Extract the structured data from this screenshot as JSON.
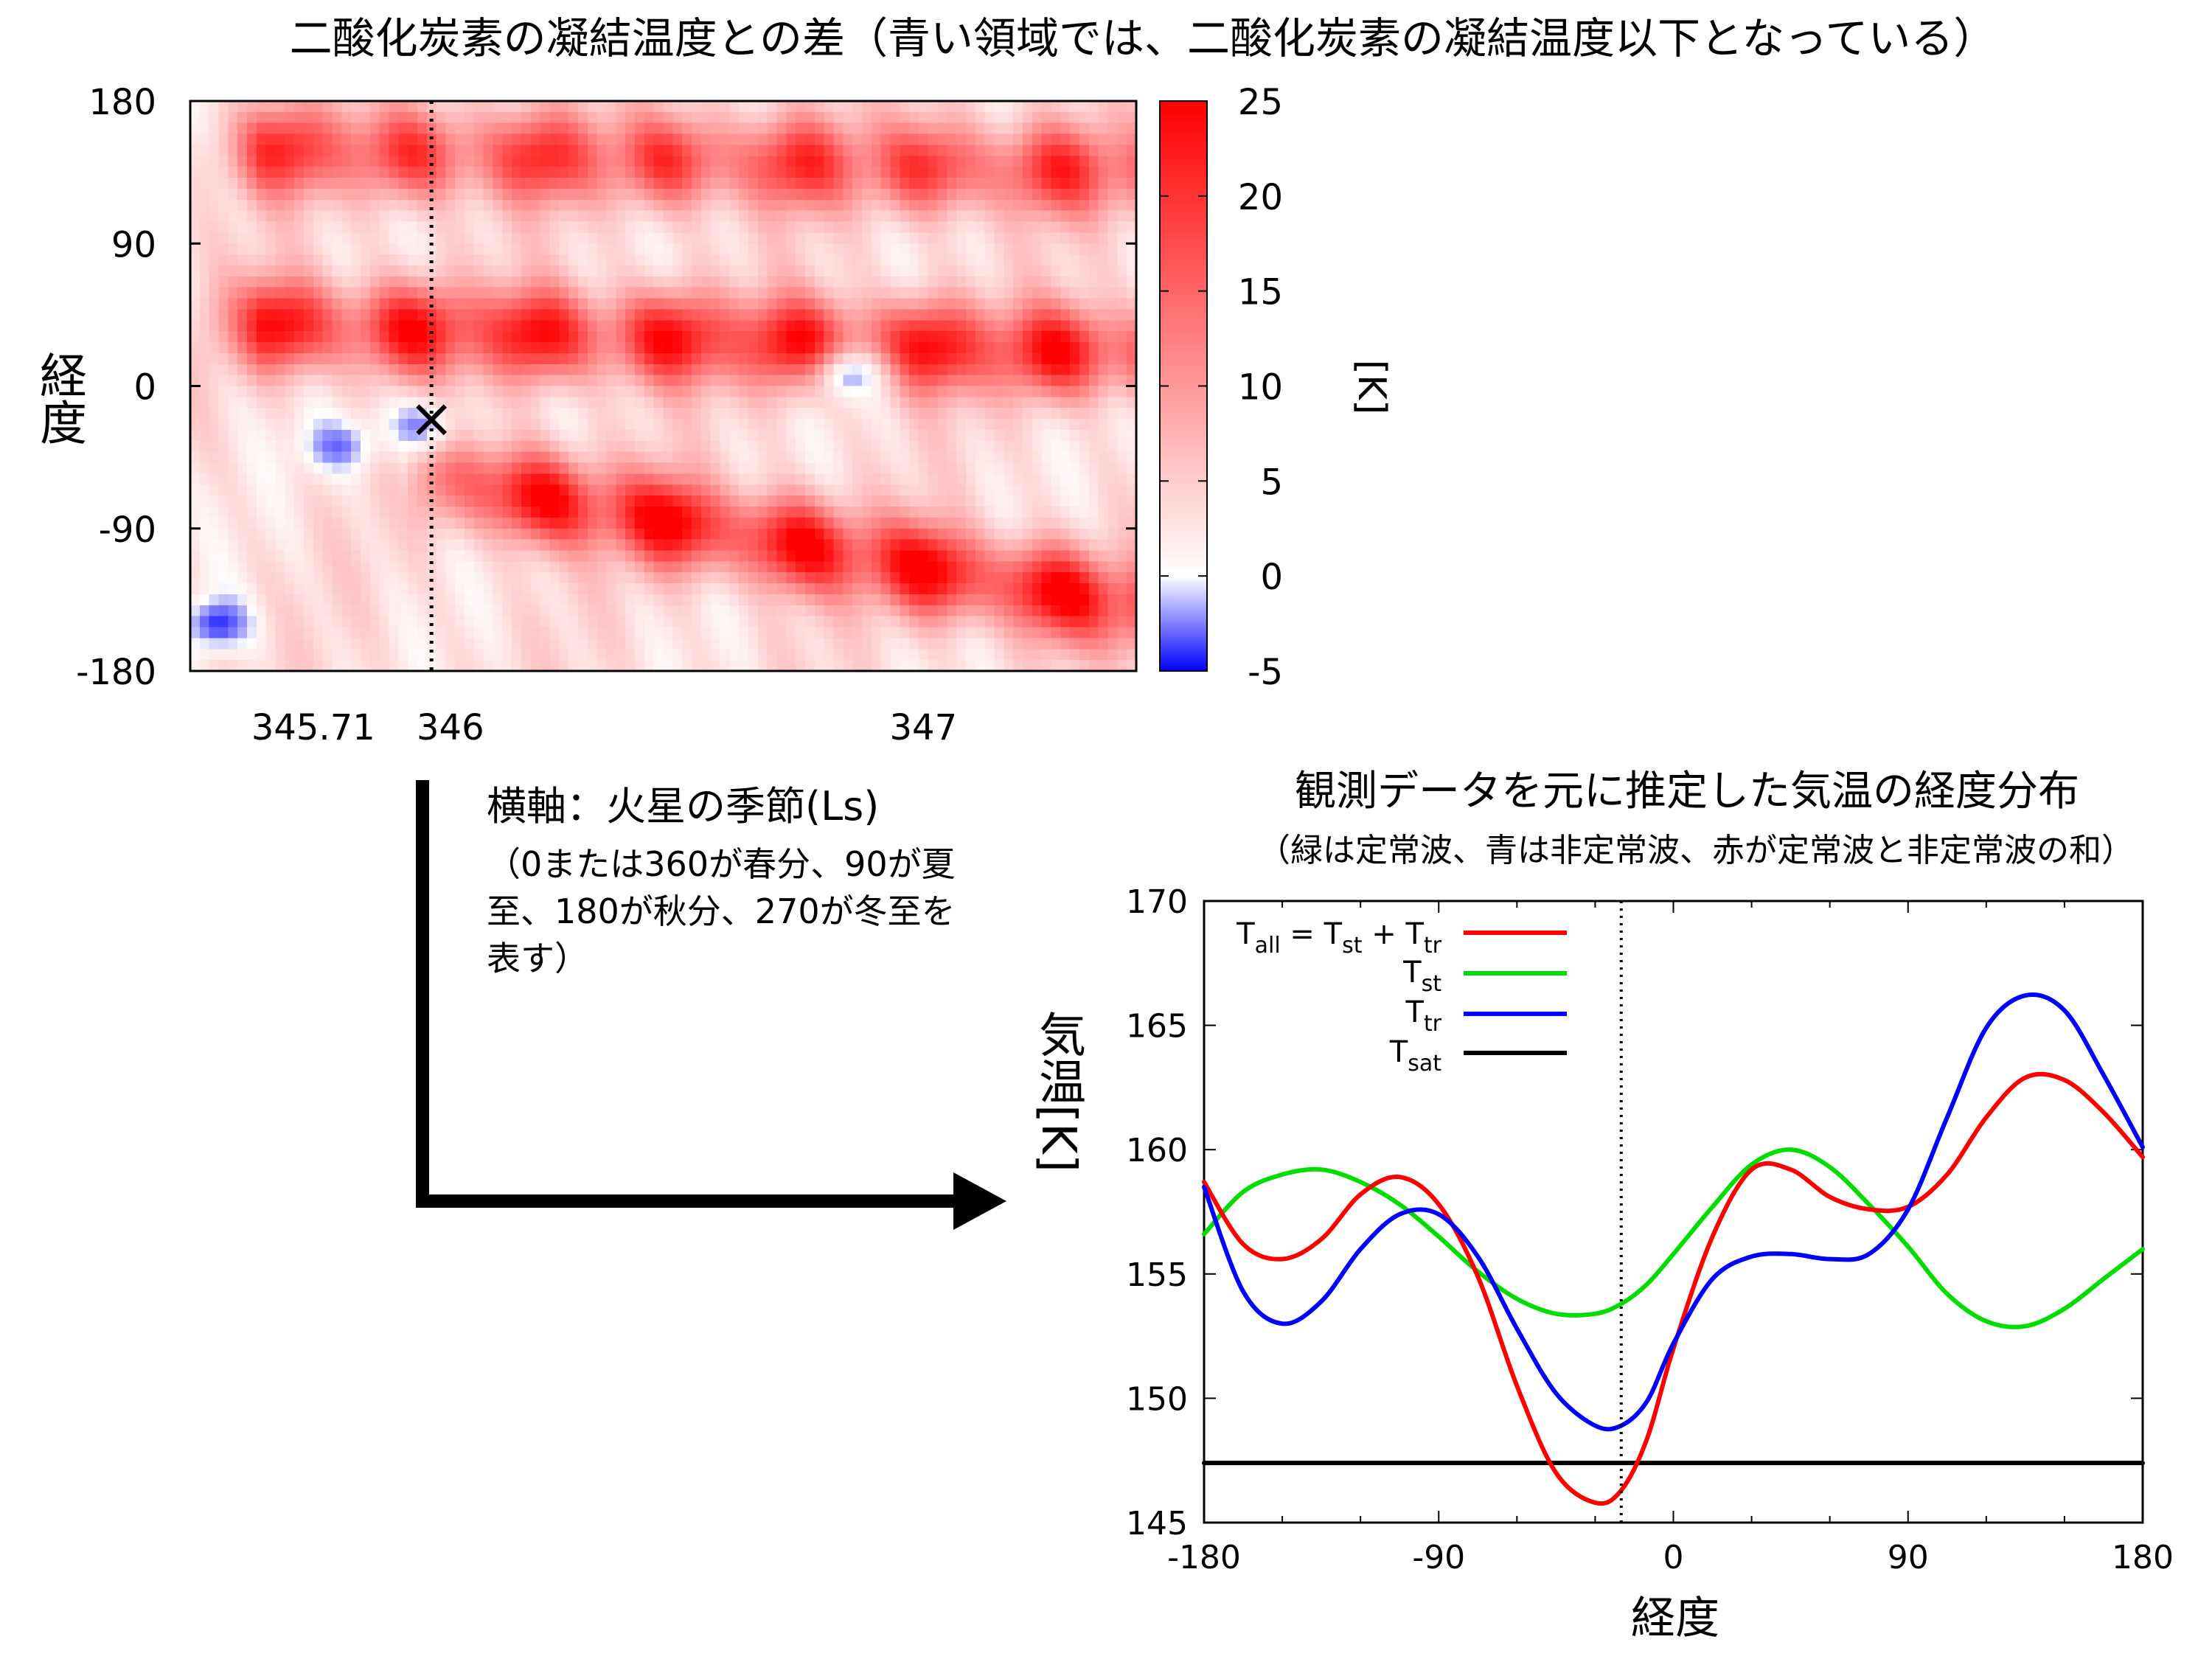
{
  "chart_data": [
    {
      "type": "heatmap",
      "title": "二酸化炭素の凝結温度との差（青い領域では、二酸化炭素の凝結温度以下となっている）",
      "ylabel": "経度",
      "xlabel": "",
      "colorbar_label": "[K]",
      "xlim": [
        345.45,
        347.45
      ],
      "ylim": [
        -180,
        180
      ],
      "yticks": [
        -180,
        -90,
        0,
        90,
        180
      ],
      "xtick_labels": [
        {
          "value": 345.71,
          "label": "345.71"
        },
        {
          "value": 346,
          "label": "346"
        },
        {
          "value": 347,
          "label": "347"
        }
      ],
      "colorbar_ticks": [
        -5,
        0,
        5,
        10,
        15,
        20,
        25
      ],
      "color_range": [
        -5,
        25
      ],
      "colors": {
        "min": "#0000ff",
        "zero": "#ffffff",
        "max": "#ff0000"
      },
      "marker": {
        "x": 345.96,
        "y": -20,
        "symbol": "×"
      },
      "vertical_line_x": 345.96,
      "pattern_note_components": {
        "red_bands": [
          {
            "x_start": 345.45,
            "x_end": 347.45,
            "lat_start": 40,
            "lat_end": 20,
            "amplitude_K": 22
          },
          {
            "x_start": 345.45,
            "x_end": 347.45,
            "lat_start": 150,
            "lat_end": 135,
            "amplitude_K": 18
          },
          {
            "x_start": 345.9,
            "x_end": 347.45,
            "lat_start": -55,
            "lat_end": -140,
            "amplitude_K": 24
          }
        ],
        "blue_patches": [
          {
            "x": 345.76,
            "y": -38,
            "value_K": -3
          },
          {
            "x": 345.93,
            "y": -25,
            "value_K": -2.5
          },
          {
            "x": 345.51,
            "y": -150,
            "value_K": -4
          },
          {
            "x": 346.85,
            "y": 5,
            "value_K": -1.5
          }
        ]
      }
    },
    {
      "type": "line",
      "title": "観測データを元に推定した気温の経度分布",
      "subtitle": "（緑は定常波、青は非定常波、赤が定常波と非定常波の和）",
      "xlabel": "経度",
      "ylabel": "気温[K]",
      "xlim": [
        -180,
        180
      ],
      "ylim": [
        145,
        170
      ],
      "xticks": [
        -180,
        -90,
        0,
        90,
        180
      ],
      "yticks": [
        145,
        150,
        155,
        160,
        165,
        170
      ],
      "vertical_line_x": -20,
      "series": [
        {
          "key": "tall",
          "name": "T_all = T_st + T_tr",
          "color": "#ff0000",
          "x": [
            -180,
            -165,
            -150,
            -135,
            -120,
            -105,
            -90,
            -75,
            -60,
            -45,
            -30,
            -20,
            -10,
            0,
            15,
            30,
            45,
            60,
            75,
            90,
            105,
            120,
            135,
            150,
            165,
            180
          ],
          "y": [
            158.7,
            156.2,
            155.6,
            156.4,
            158.2,
            158.9,
            157.8,
            154.9,
            150.5,
            147.0,
            145.8,
            146.3,
            148.4,
            152.0,
            156.5,
            159.2,
            159.2,
            158.1,
            157.6,
            157.7,
            159.0,
            161.3,
            162.9,
            162.8,
            161.5,
            159.7
          ]
        },
        {
          "key": "tst",
          "name": "T_st",
          "color": "#00dd00",
          "x": [
            -180,
            -165,
            -150,
            -135,
            -120,
            -105,
            -90,
            -75,
            -60,
            -45,
            -30,
            -20,
            -10,
            0,
            15,
            30,
            45,
            60,
            75,
            90,
            105,
            120,
            135,
            150,
            165,
            180
          ],
          "y": [
            156.6,
            158.3,
            159.0,
            159.2,
            158.7,
            157.8,
            156.5,
            155.1,
            154.0,
            153.4,
            153.4,
            153.8,
            154.6,
            155.8,
            157.7,
            159.4,
            160.0,
            159.3,
            157.8,
            156.1,
            154.2,
            153.1,
            152.9,
            153.6,
            154.8,
            156.0
          ]
        },
        {
          "key": "ttr",
          "name": "T_tr",
          "color": "#0000ff",
          "x": [
            -180,
            -165,
            -150,
            -135,
            -120,
            -105,
            -90,
            -75,
            -60,
            -45,
            -30,
            -20,
            -10,
            0,
            15,
            30,
            45,
            60,
            75,
            90,
            105,
            120,
            135,
            150,
            165,
            180
          ],
          "y": [
            158.5,
            154.3,
            153.0,
            153.9,
            156.0,
            157.4,
            157.4,
            155.7,
            152.8,
            150.2,
            148.9,
            148.9,
            149.9,
            152.2,
            154.8,
            155.7,
            155.8,
            155.6,
            155.8,
            157.6,
            161.3,
            164.9,
            166.2,
            165.6,
            163.0,
            160.1
          ]
        },
        {
          "key": "tsat",
          "name": "T_sat",
          "color": "#000000",
          "x": [
            -180,
            180
          ],
          "y": [
            147.4,
            147.4
          ]
        }
      ]
    }
  ],
  "annotation": {
    "line1": "横軸：火星の季節(Ls)",
    "line2": "（0または360が春分、90が夏",
    "line3": "至、180が秋分、270が冬至を",
    "line4": "表す）"
  }
}
